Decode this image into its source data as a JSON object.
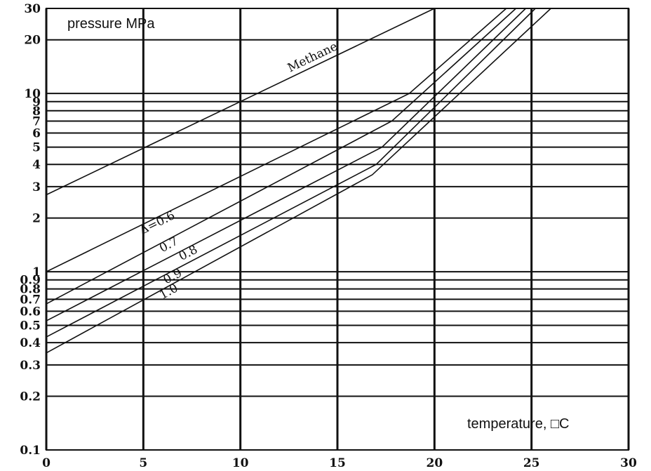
{
  "chart_data": {
    "type": "line",
    "title": "",
    "ylabel": "pressure MPa",
    "xlabel": "temperature, □C",
    "xlim": [
      0,
      30
    ],
    "ylim": [
      0.1,
      30
    ],
    "yscale": "log",
    "grid": true,
    "x_ticks": [
      "0",
      "5",
      "10",
      "15",
      "20",
      "25",
      "30"
    ],
    "x_tick_values": [
      0,
      5,
      10,
      15,
      20,
      25,
      30
    ],
    "y_ticks": [
      "0.1",
      "0.2",
      "0.3",
      "0.4",
      "0.5",
      "0.6",
      "0.7",
      "0.8",
      "0.9",
      "1",
      "2",
      "3",
      "4",
      "5",
      "6",
      "7",
      "8",
      "9",
      "10",
      "20",
      "30"
    ],
    "y_tick_values": [
      0.1,
      0.2,
      0.3,
      0.4,
      0.5,
      0.6,
      0.7,
      0.8,
      0.9,
      1,
      2,
      3,
      4,
      5,
      6,
      7,
      8,
      9,
      10,
      20,
      30
    ],
    "series": [
      {
        "name": "Methane",
        "x": [
          0,
          20
        ],
        "y": [
          2.7,
          30
        ]
      },
      {
        "name": "Δ=0.6",
        "x": [
          0,
          18.7,
          23.7
        ],
        "y": [
          1.0,
          10.0,
          30
        ]
      },
      {
        "name": "0.7",
        "x": [
          0,
          17.8,
          24.2
        ],
        "y": [
          0.66,
          7.0,
          30
        ]
      },
      {
        "name": "0.8",
        "x": [
          0,
          17.3,
          24.7
        ],
        "y": [
          0.53,
          5.0,
          30
        ]
      },
      {
        "name": "0.9",
        "x": [
          0,
          17.0,
          25.2
        ],
        "y": [
          0.43,
          4.0,
          30
        ]
      },
      {
        "name": "1.0",
        "x": [
          0,
          16.8,
          26.0
        ],
        "y": [
          0.35,
          3.5,
          30
        ]
      }
    ],
    "series_label_anchor_x": [
      13.8,
      5.8,
      6.4,
      7.4,
      6.6,
      6.4
    ]
  }
}
